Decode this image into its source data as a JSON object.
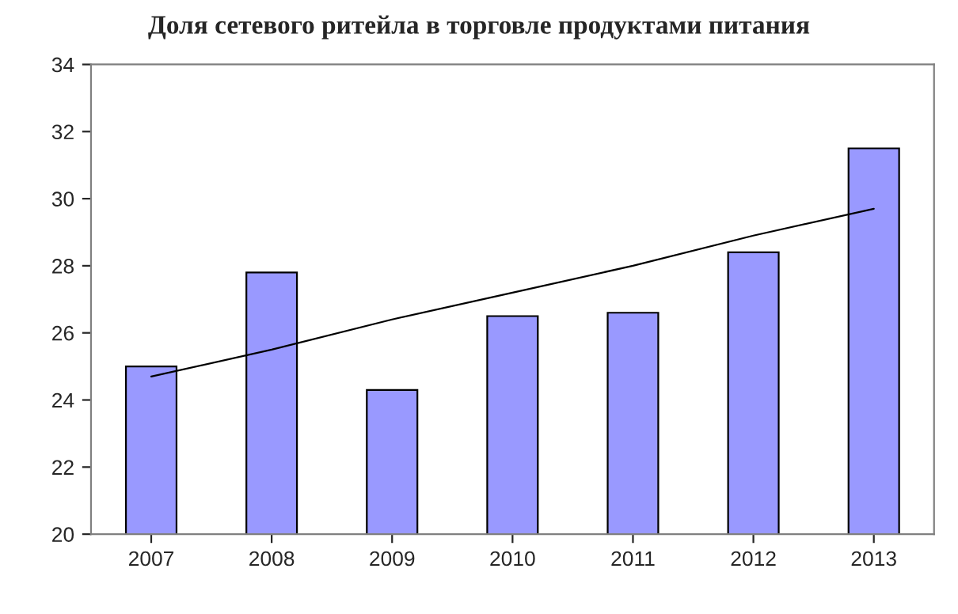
{
  "chart_data": {
    "type": "bar",
    "title": "Доля сетевого ритейла в торговле продуктами питания",
    "categories": [
      "2007",
      "2008",
      "2009",
      "2010",
      "2011",
      "2012",
      "2013"
    ],
    "series": [
      {
        "color": "#9999ff",
        "values": [
          25.0,
          27.8,
          24.3,
          26.5,
          26.6,
          28.4,
          31.5
        ]
      },
      {
        "type": "line",
        "color": "#000000",
        "values": [
          24.7,
          25.5,
          26.4,
          27.2,
          28.0,
          28.9,
          29.7
        ]
      }
    ],
    "ylim": [
      20,
      34
    ],
    "yticks": [
      20,
      22,
      24,
      26,
      28,
      30,
      32,
      34
    ],
    "grid": false,
    "legend": false
  }
}
